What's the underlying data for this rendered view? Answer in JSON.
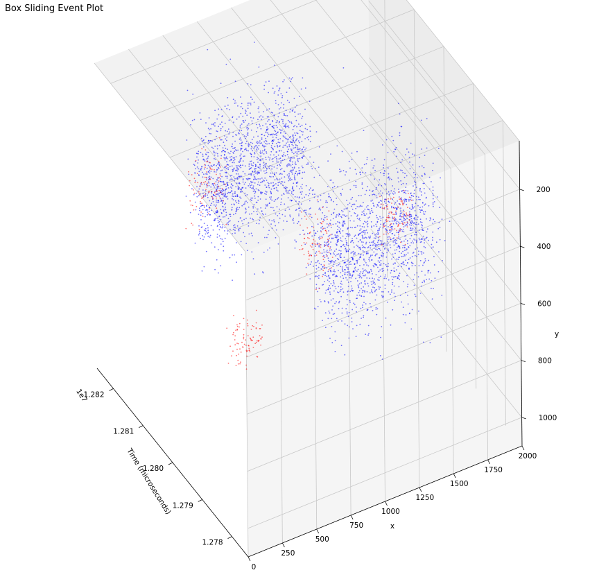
{
  "chart_data": {
    "type": "scatter",
    "projection": "3d",
    "title": "Box Sliding Event Plot",
    "xlabel": "x",
    "ylabel": "y",
    "zlabel": "Time (microseconds)",
    "z_offset_label": "1e7",
    "x_ticks": [
      "0",
      "250",
      "500",
      "750",
      "1000",
      "1250",
      "1500",
      "1750",
      "2000"
    ],
    "y_ticks": [
      "200",
      "400",
      "600",
      "800",
      "1000"
    ],
    "z_ticks": [
      "1.278",
      "1.279",
      "1.280",
      "1.281",
      "1.282"
    ],
    "xlim": [
      0,
      2000
    ],
    "ylim": [
      1100,
      30
    ],
    "zlim": [
      12774500,
      12825500
    ],
    "grid": true,
    "series": [
      {
        "color": "#0000ff",
        "note_points": "dense point cloud",
        "clusters": [
          {
            "x_center": 950,
            "y_center": 480,
            "t_center": 12817000,
            "x_spread": 420,
            "y_spread": 260,
            "t_spread": 4000
          },
          {
            "x_center": 1500,
            "y_center": 620,
            "t_center": 12801000,
            "x_spread": 450,
            "y_spread": 280,
            "t_spread": 4500
          }
        ]
      },
      {
        "color": "#ff0000",
        "clusters": [
          {
            "x_center": 700,
            "y_center": 900,
            "t_center": 12807000,
            "x_spread": 120,
            "y_spread": 90,
            "t_spread": 1500
          },
          {
            "x_center": 1150,
            "y_center": 600,
            "t_center": 12804000,
            "x_spread": 120,
            "y_spread": 120,
            "t_spread": 1500
          },
          {
            "x_center": 1650,
            "y_center": 560,
            "t_center": 12800000,
            "x_spread": 120,
            "y_spread": 100,
            "t_spread": 1500
          },
          {
            "x_center": 650,
            "y_center": 500,
            "t_center": 12818000,
            "x_spread": 150,
            "y_spread": 120,
            "t_spread": 1500
          }
        ]
      }
    ]
  }
}
